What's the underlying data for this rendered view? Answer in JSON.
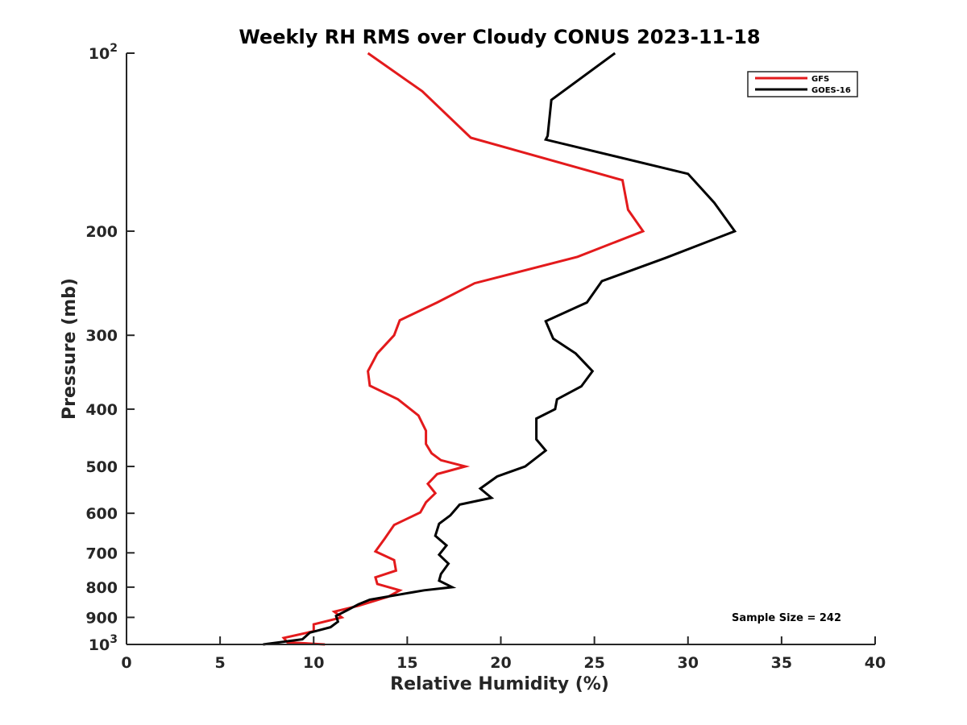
{
  "chart_data": {
    "type": "line",
    "title": "Weekly RH RMS over Cloudy CONUS 2023-11-18",
    "xlabel": "Relative Humidity (%)",
    "ylabel": "Pressure (mb)",
    "xlim": [
      0,
      40
    ],
    "ylim": [
      100,
      1000
    ],
    "y_scale": "log",
    "y_reversed": true,
    "grid": false,
    "legend_position": "top-right",
    "x_ticks": [
      0,
      5,
      10,
      15,
      20,
      25,
      30,
      35,
      40
    ],
    "x_tick_labels": [
      "0",
      "5",
      "10",
      "15",
      "20",
      "25",
      "30",
      "35",
      "40"
    ],
    "y_ticks": [
      100,
      200,
      300,
      400,
      500,
      600,
      700,
      800,
      900,
      1000
    ],
    "y_tick_labels": [
      {
        "base": "10",
        "exp": "2"
      },
      {
        "base": "200",
        "exp": ""
      },
      {
        "base": "300",
        "exp": ""
      },
      {
        "base": "400",
        "exp": ""
      },
      {
        "base": "500",
        "exp": ""
      },
      {
        "base": "600",
        "exp": ""
      },
      {
        "base": "700",
        "exp": ""
      },
      {
        "base": "800",
        "exp": ""
      },
      {
        "base": "900",
        "exp": ""
      },
      {
        "base": "10",
        "exp": "3"
      }
    ],
    "annotation": "Sample Size = 242",
    "series": [
      {
        "name": "GFS",
        "color": "#e31a1c",
        "x": [
          12.9,
          15.8,
          18.4,
          26.5,
          26.8,
          27.6,
          24.1,
          18.6,
          16.6,
          14.6,
          14.3,
          13.4,
          12.9,
          13.0,
          14.5,
          15.6,
          16.0,
          16.0,
          16.3,
          16.8,
          18.1,
          16.6,
          16.1,
          16.5,
          16.0,
          15.7,
          14.3,
          13.8,
          13.3,
          14.3,
          14.4,
          13.3,
          13.4,
          14.6,
          14.0,
          12.4,
          11.1,
          11.5,
          10.0,
          10.0,
          8.4,
          8.6,
          10.6
        ],
        "y": [
          100,
          116,
          139,
          164,
          184,
          200,
          221,
          245,
          264,
          283,
          300,
          322,
          345,
          365,
          385,
          410,
          435,
          458,
          475,
          488,
          500,
          515,
          535,
          555,
          575,
          598,
          628,
          662,
          696,
          720,
          750,
          770,
          790,
          810,
          830,
          860,
          880,
          900,
          925,
          950,
          975,
          992,
          1000
        ]
      },
      {
        "name": "GOES-16",
        "color": "#000000",
        "x": [
          26.1,
          22.7,
          22.5,
          22.4,
          30.0,
          31.4,
          32.5,
          28.8,
          25.4,
          24.6,
          22.4,
          22.8,
          24.0,
          24.9,
          24.3,
          23.0,
          22.9,
          21.9,
          21.9,
          22.4,
          21.3,
          19.8,
          18.9,
          19.5,
          17.8,
          17.3,
          16.7,
          16.5,
          17.1,
          16.7,
          17.2,
          16.8,
          16.7,
          17.4,
          15.9,
          13.0,
          12.4,
          11.8,
          11.2,
          11.3,
          10.9,
          9.8,
          9.4,
          7.3
        ],
        "y": [
          100,
          120,
          138,
          140,
          160,
          179,
          200,
          222,
          243,
          264,
          284,
          304,
          322,
          345,
          366,
          385,
          400,
          415,
          450,
          470,
          500,
          520,
          545,
          565,
          580,
          605,
          625,
          655,
          680,
          705,
          730,
          760,
          780,
          800,
          810,
          840,
          855,
          875,
          895,
          915,
          935,
          955,
          980,
          1000
        ]
      }
    ]
  }
}
